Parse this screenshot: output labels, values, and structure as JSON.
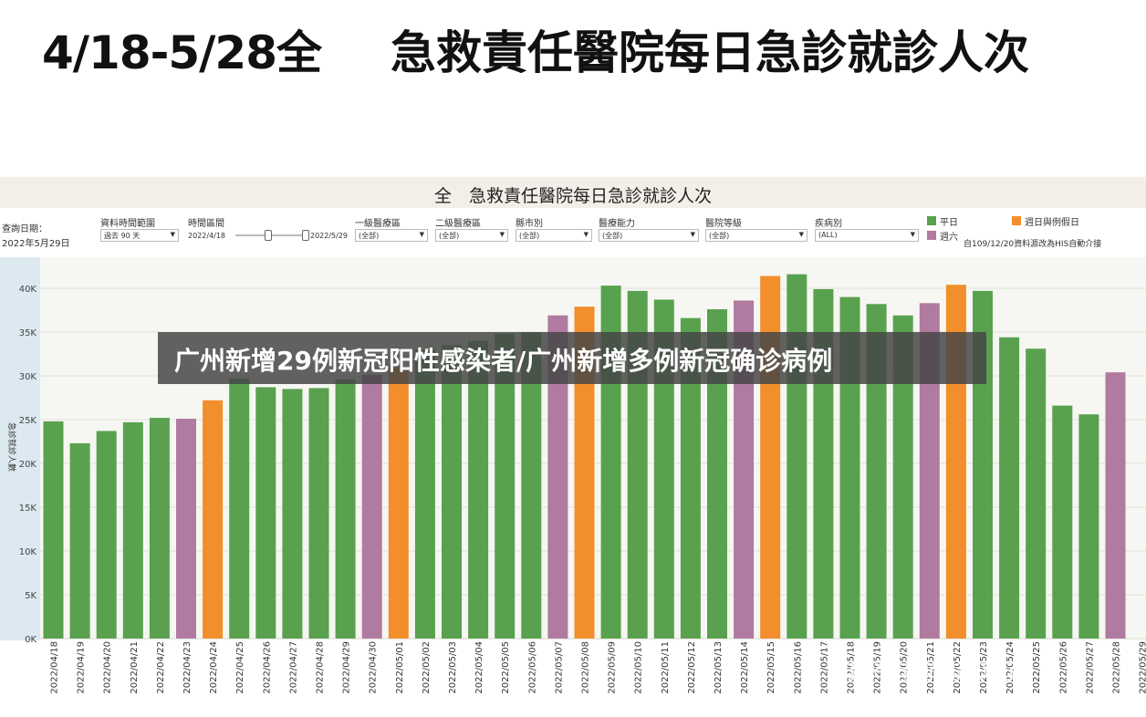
{
  "header": {
    "left_title": "4/18-5/28全",
    "right_title": "急救責任醫院每日急診就診人次"
  },
  "dashboard": {
    "title": "全　急救責任醫院每日急診就診人次",
    "query_date_label": "查詢日期：",
    "query_date_value": "2022年5月29日",
    "filters": [
      {
        "label": "資料時間範圍",
        "value": "過去 90 天"
      },
      {
        "label": "時間區間",
        "value": "2022/4/18"
      },
      {
        "label": "一級醫療區",
        "value": "(全部)"
      },
      {
        "label": "二級醫療區",
        "value": "(全部)"
      },
      {
        "label": "縣市別",
        "value": "(全部)"
      },
      {
        "label": "醫療能力",
        "value": "(全部)"
      },
      {
        "label": "醫院等級",
        "value": "(全部)"
      },
      {
        "label": "疾病別",
        "value": "(ALL)"
      }
    ],
    "range_end": "2022/5/29",
    "legend": [
      {
        "label": "平日",
        "color": "#59a14f"
      },
      {
        "label": "週日與例假日",
        "color": "#f28e2b"
      },
      {
        "label": "週六",
        "color": "#b07aa1"
      }
    ],
    "note": "自109/12/20資料源改為HIS自動介接"
  },
  "overlay_text": "广州新增29例新冠阳性感染者/广州新增多例新冠确诊病例",
  "watermark": "知乎 @前用起来了",
  "chart_data": {
    "type": "bar",
    "ylabel": "急診就診人數",
    "ylim": [
      0,
      45000
    ],
    "yticks": [
      0,
      5000,
      10000,
      15000,
      20000,
      25000,
      30000,
      35000,
      40000
    ],
    "ytick_labels": [
      "0K",
      "5K",
      "10K",
      "15K",
      "20K",
      "25K",
      "30K",
      "35K",
      "40K"
    ],
    "categories": [
      "2022/04/18",
      "2022/04/19",
      "2022/04/20",
      "2022/04/21",
      "2022/04/22",
      "2022/04/23",
      "2022/04/24",
      "2022/04/25",
      "2022/04/26",
      "2022/04/27",
      "2022/04/28",
      "2022/04/29",
      "2022/04/30",
      "2022/05/01",
      "2022/05/02",
      "2022/05/03",
      "2022/05/04",
      "2022/05/05",
      "2022/05/06",
      "2022/05/07",
      "2022/05/08",
      "2022/05/09",
      "2022/05/10",
      "2022/05/11",
      "2022/05/12",
      "2022/05/13",
      "2022/05/14",
      "2022/05/15",
      "2022/05/16",
      "2022/05/17",
      "2022/05/18",
      "2022/05/19",
      "2022/05/20",
      "2022/05/21",
      "2022/05/22",
      "2022/05/23",
      "2022/05/24",
      "2022/05/25",
      "2022/05/26",
      "2022/05/27",
      "2022/05/28",
      "2022/05/29"
    ],
    "values": [
      24800,
      22300,
      23700,
      24700,
      25200,
      25100,
      27200,
      29700,
      28700,
      28500,
      28600,
      29600,
      30100,
      31000,
      33000,
      33500,
      34000,
      34800,
      35000,
      36900,
      37900,
      40300,
      39700,
      38700,
      36600,
      37600,
      38600,
      41400,
      41600,
      39900,
      39000,
      38200,
      36900,
      38300,
      40400,
      39700,
      34400,
      33100,
      26600,
      25600,
      30400,
      null
    ],
    "day_type": [
      "平日",
      "平日",
      "平日",
      "平日",
      "平日",
      "週六",
      "週日與例假日",
      "平日",
      "平日",
      "平日",
      "平日",
      "平日",
      "週六",
      "週日與例假日",
      "平日",
      "平日",
      "平日",
      "平日",
      "平日",
      "週六",
      "週日與例假日",
      "平日",
      "平日",
      "平日",
      "平日",
      "平日",
      "週六",
      "週日與例假日",
      "平日",
      "平日",
      "平日",
      "平日",
      "平日",
      "週六",
      "週日與例假日",
      "平日",
      "平日",
      "平日",
      "平日",
      "平日",
      "週六",
      "週日與例假日"
    ],
    "grid": true
  }
}
